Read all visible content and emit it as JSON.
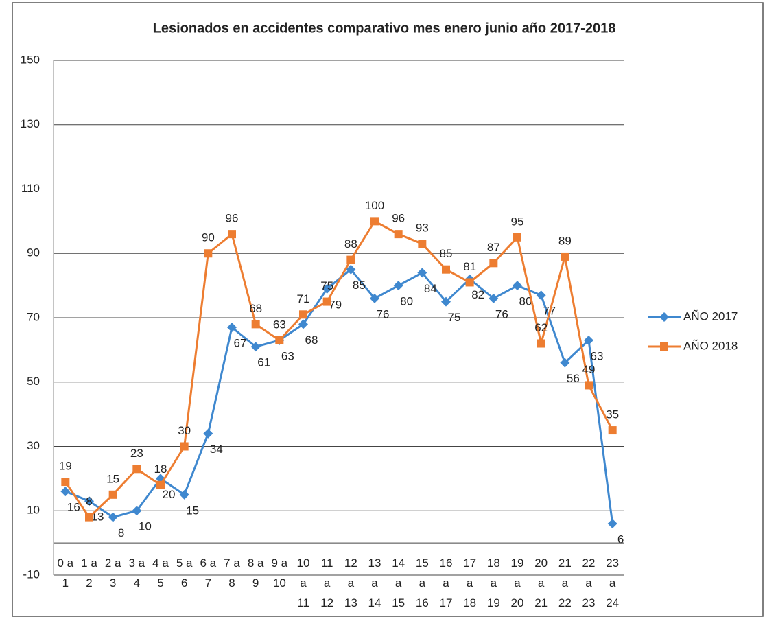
{
  "chart_data": {
    "type": "line",
    "title": "Lesionados en accidentes comparativo mes enero junio año 2017-2018",
    "categories": [
      "0 a 1",
      "1 a 2",
      "2 a 3",
      "3 a 4",
      "4 a 5",
      "5 a 6",
      "6 a 7",
      "7 a 8",
      "8 a 9",
      "9 a 10",
      "10 a 11",
      "11 a 12",
      "12 a 13",
      "13 a 14",
      "14 a 15",
      "15 a 16",
      "16 a 17",
      "17 a 18",
      "18 a 19",
      "19 a 20",
      "20 a 21",
      "21 a 22",
      "22 a 23",
      "23 a 24"
    ],
    "series": [
      {
        "name": "AÑO 2017",
        "color": "#3f88cf",
        "marker": "diamond",
        "values": [
          16,
          13,
          8,
          10,
          20,
          15,
          34,
          67,
          61,
          63,
          68,
          79,
          85,
          76,
          80,
          84,
          75,
          82,
          76,
          80,
          77,
          56,
          63,
          6
        ]
      },
      {
        "name": "AÑO 2018",
        "color": "#ed7d31",
        "marker": "square",
        "values": [
          19,
          8,
          15,
          23,
          18,
          30,
          90,
          96,
          68,
          63,
          71,
          75,
          88,
          100,
          96,
          93,
          85,
          81,
          87,
          95,
          62,
          89,
          49,
          35
        ]
      }
    ],
    "ylim": [
      -10,
      150
    ],
    "yticks": [
      -10,
      10,
      30,
      50,
      70,
      90,
      110,
      130,
      150
    ],
    "grid": true,
    "legend": "right"
  }
}
